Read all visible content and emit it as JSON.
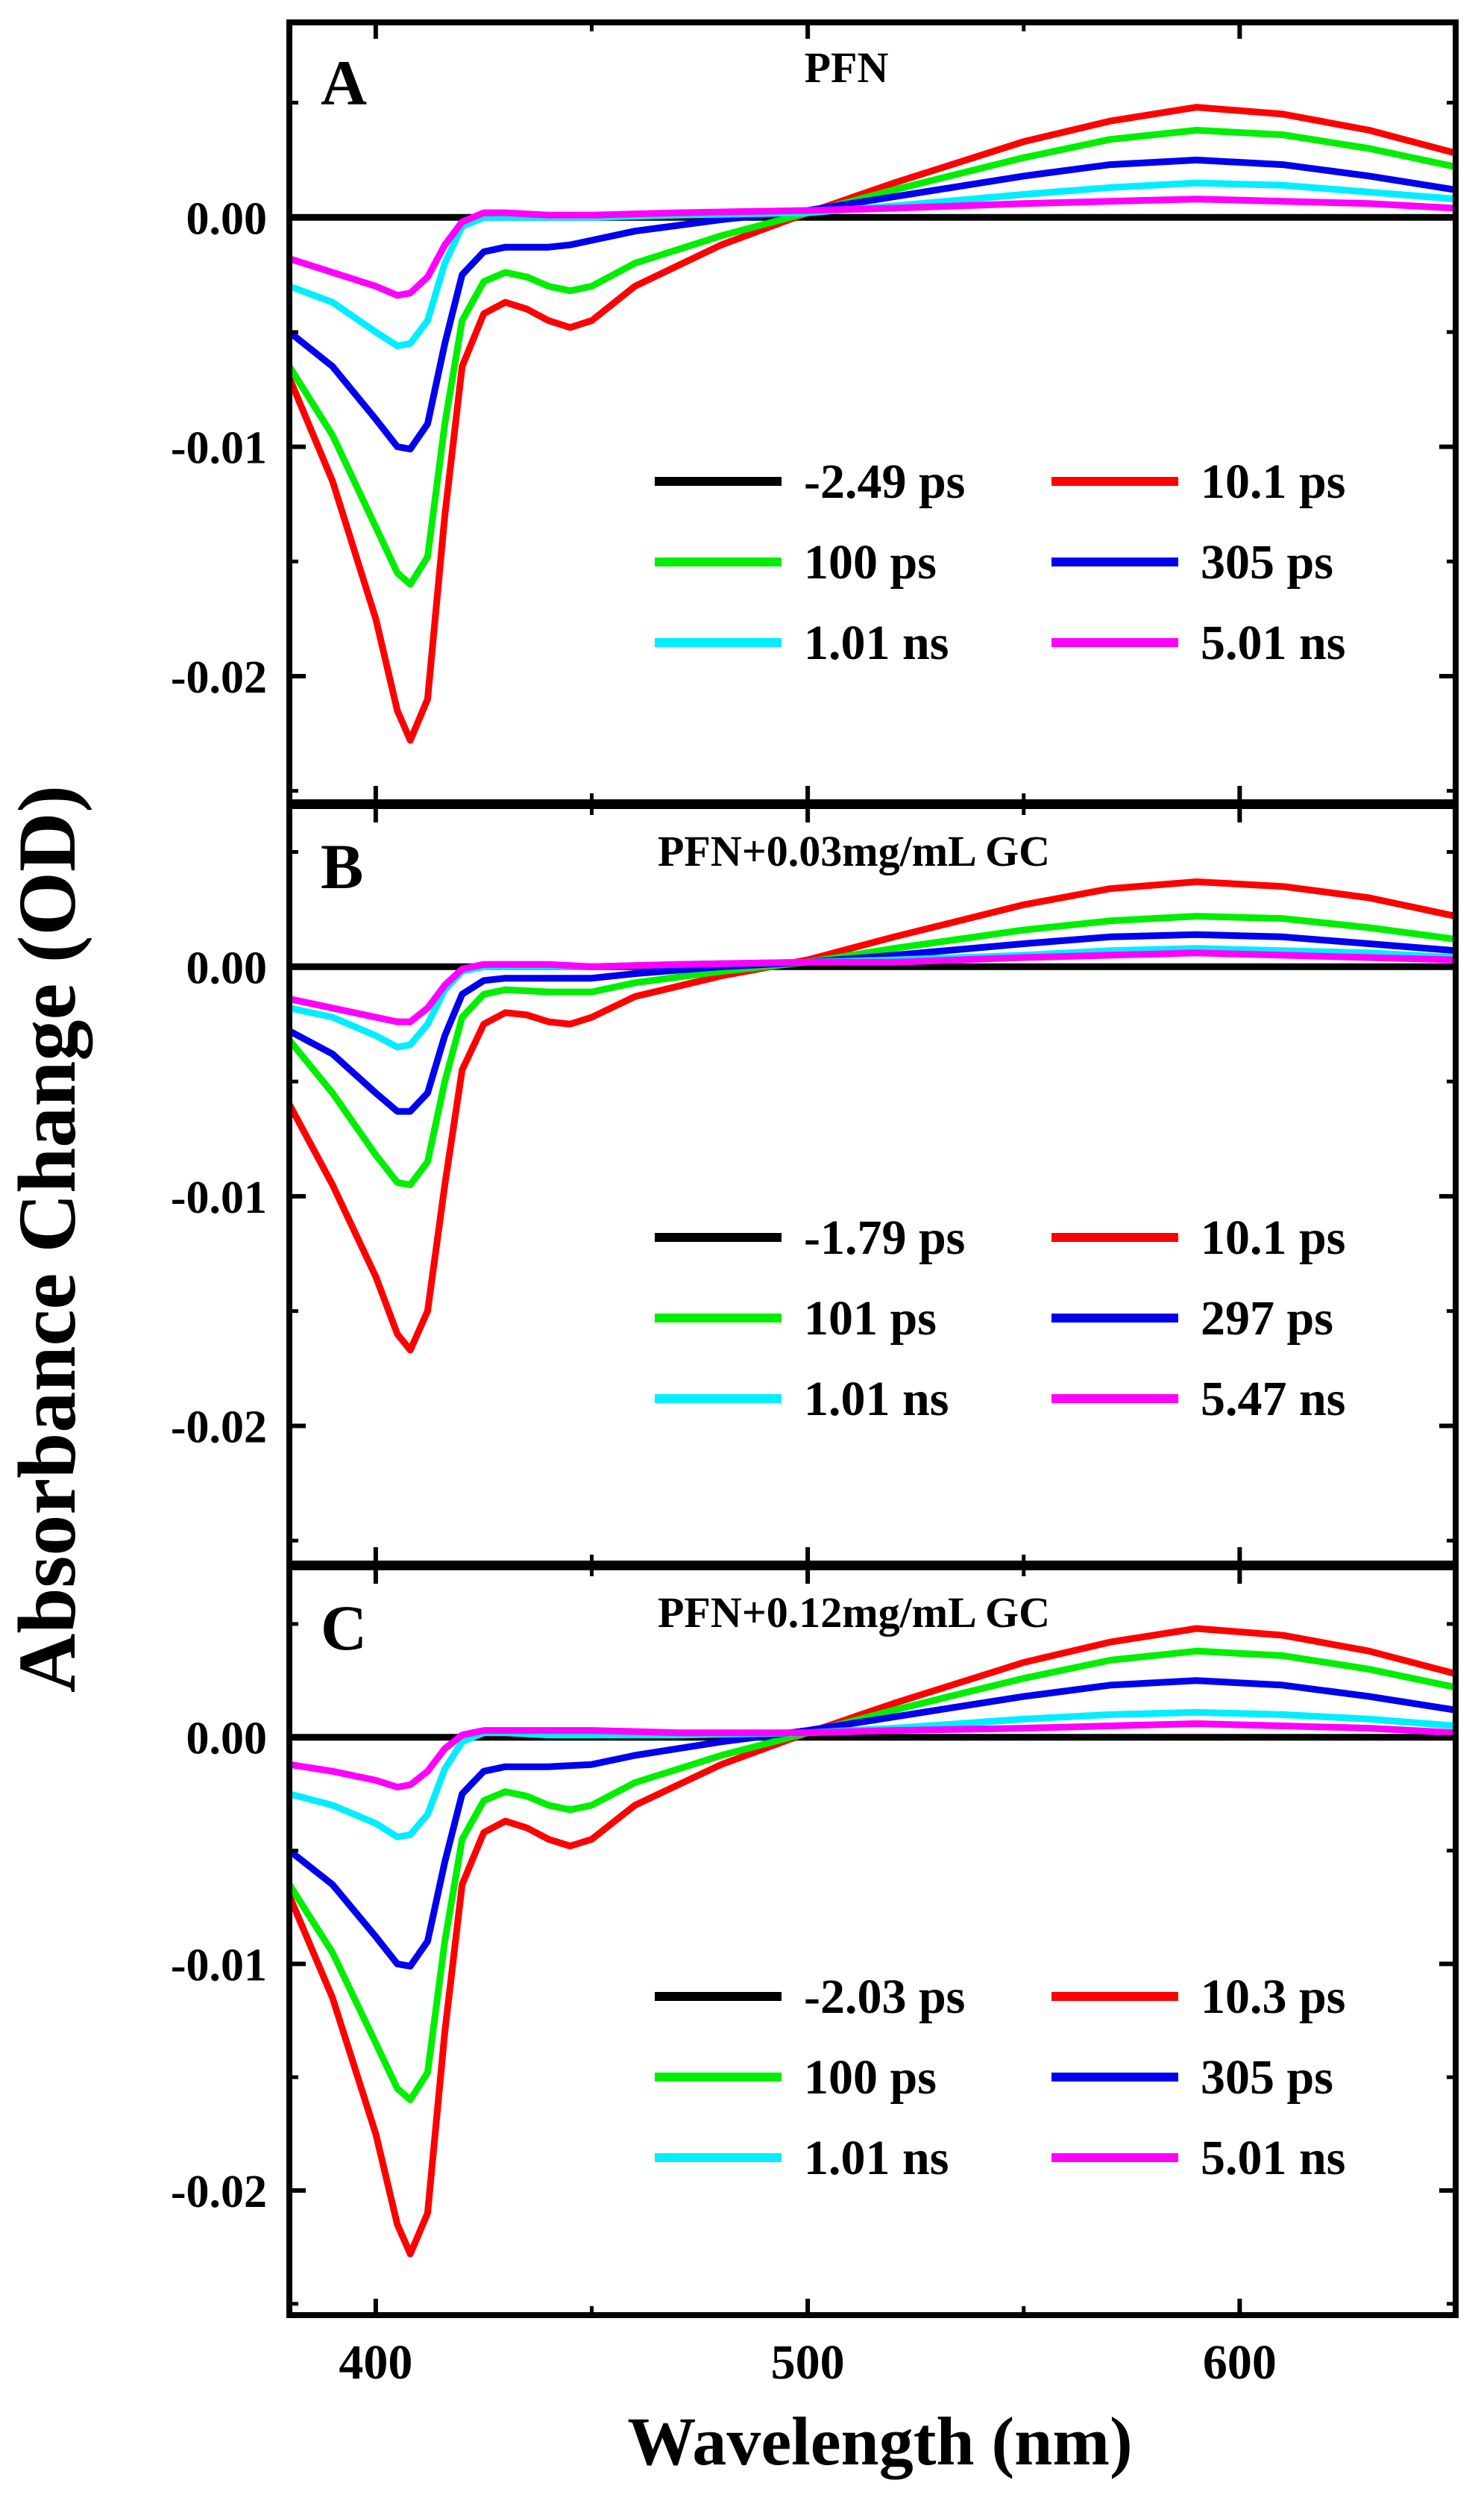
{
  "figure": {
    "y_axis_label": "Absorbance Change (OD)",
    "x_axis_label": "Wavelength (nm)",
    "x_ticks": [
      400,
      500,
      600
    ],
    "y_ticks": [
      0.0,
      -0.01,
      -0.02
    ],
    "y_tick_labels": [
      "0.00",
      "-0.01",
      "-0.02"
    ]
  },
  "series_colors": {
    "black": "#000000",
    "red": "#ff0000",
    "green": "#00ee00",
    "blue": "#0000ee",
    "cyan": "#00eeff",
    "magenta": "#ff00ff"
  },
  "chart_data": [
    {
      "type": "line",
      "panel_letter": "A",
      "title": "PFN",
      "xlabel": "Wavelength (nm)",
      "ylabel": "Absorbance Change (OD)",
      "xlim": [
        380,
        650
      ],
      "ylim": [
        -0.0255,
        0.0085
      ],
      "legend": [
        {
          "label": "-2.49 ps",
          "color": "black"
        },
        {
          "label": "10.1 ps",
          "color": "red"
        },
        {
          "label": "100 ps",
          "color": "green"
        },
        {
          "label": "305 ps",
          "color": "blue"
        },
        {
          "label": "1.01 ns",
          "color": "cyan"
        },
        {
          "label": "5.01 ns",
          "color": "magenta"
        }
      ],
      "series": [
        {
          "name": "-2.49 ps",
          "color": "black",
          "x": [
            380,
            400,
            420,
            450,
            500,
            550,
            600,
            650
          ],
          "y": [
            0,
            0,
            0,
            0,
            0,
            0,
            0,
            0
          ]
        },
        {
          "name": "10.1 ps",
          "color": "red",
          "x": [
            380,
            390,
            400,
            405,
            408,
            412,
            416,
            420,
            425,
            430,
            435,
            440,
            445,
            450,
            460,
            480,
            500,
            520,
            550,
            570,
            590,
            610,
            630,
            650
          ],
          "y": [
            -0.007,
            -0.0115,
            -0.0175,
            -0.0215,
            -0.0228,
            -0.021,
            -0.013,
            -0.0065,
            -0.0042,
            -0.0037,
            -0.004,
            -0.0045,
            -0.0048,
            -0.0045,
            -0.003,
            -0.0012,
            0.0002,
            0.0015,
            0.0033,
            0.0042,
            0.0048,
            0.0045,
            0.0038,
            0.0028
          ]
        },
        {
          "name": "100 ps",
          "color": "green",
          "x": [
            380,
            390,
            400,
            405,
            408,
            412,
            416,
            420,
            425,
            430,
            435,
            440,
            445,
            450,
            460,
            480,
            500,
            520,
            550,
            570,
            590,
            610,
            630,
            650
          ],
          "y": [
            -0.0065,
            -0.0095,
            -0.0135,
            -0.0155,
            -0.016,
            -0.0148,
            -0.009,
            -0.0045,
            -0.0028,
            -0.0024,
            -0.0026,
            -0.003,
            -0.0032,
            -0.003,
            -0.002,
            -0.0008,
            0.0002,
            0.0012,
            0.0026,
            0.0034,
            0.0038,
            0.0036,
            0.003,
            0.0022
          ]
        },
        {
          "name": "305 ps",
          "color": "blue",
          "x": [
            380,
            390,
            400,
            405,
            408,
            412,
            416,
            420,
            425,
            430,
            435,
            440,
            445,
            450,
            460,
            480,
            500,
            520,
            550,
            570,
            590,
            610,
            630,
            650
          ],
          "y": [
            -0.005,
            -0.0065,
            -0.0088,
            -0.01,
            -0.0101,
            -0.009,
            -0.0055,
            -0.0025,
            -0.0015,
            -0.0013,
            -0.0013,
            -0.0013,
            -0.0012,
            -0.001,
            -0.0006,
            -0.0001,
            0.0003,
            0.0009,
            0.0018,
            0.0023,
            0.0025,
            0.0023,
            0.0018,
            0.0012
          ]
        },
        {
          "name": "1.01 ns",
          "color": "cyan",
          "x": [
            380,
            390,
            400,
            405,
            408,
            412,
            416,
            420,
            425,
            430,
            440,
            450,
            470,
            500,
            520,
            550,
            570,
            590,
            610,
            630,
            650
          ],
          "y": [
            -0.003,
            -0.0037,
            -0.005,
            -0.0056,
            -0.0055,
            -0.0045,
            -0.002,
            -0.0004,
            0,
            0,
            0,
            0,
            0.0001,
            0.0002,
            0.0005,
            0.001,
            0.0013,
            0.0015,
            0.0014,
            0.0011,
            0.0008
          ]
        },
        {
          "name": "5.01 ns",
          "color": "magenta",
          "x": [
            380,
            390,
            400,
            405,
            408,
            412,
            416,
            420,
            425,
            430,
            440,
            450,
            470,
            500,
            520,
            550,
            570,
            590,
            610,
            630,
            650
          ],
          "y": [
            -0.0018,
            -0.0024,
            -0.003,
            -0.0034,
            -0.0033,
            -0.0026,
            -0.0012,
            -0.0002,
            0.0002,
            0.0002,
            0.0001,
            0.0001,
            0.0002,
            0.0003,
            0.0004,
            0.0006,
            0.0007,
            0.0008,
            0.0007,
            0.0006,
            0.0004
          ]
        }
      ]
    },
    {
      "type": "line",
      "panel_letter": "B",
      "title": "PFN+0.03mg/mL GC",
      "xlabel": "Wavelength (nm)",
      "ylabel": "Absorbance Change (OD)",
      "xlim": [
        380,
        650
      ],
      "ylim": [
        -0.026,
        0.007
      ],
      "legend": [
        {
          "label": "-1.79 ps",
          "color": "black"
        },
        {
          "label": "10.1 ps",
          "color": "red"
        },
        {
          "label": "101 ps",
          "color": "green"
        },
        {
          "label": "297 ps",
          "color": "blue"
        },
        {
          "label": "1.01 ns",
          "color": "cyan"
        },
        {
          "label": "5.47 ns",
          "color": "magenta"
        }
      ],
      "series": [
        {
          "name": "-1.79 ps",
          "color": "black",
          "x": [
            380,
            400,
            420,
            450,
            500,
            550,
            600,
            650
          ],
          "y": [
            0,
            0,
            0,
            0,
            0,
            0,
            0,
            0
          ]
        },
        {
          "name": "10.1 ps",
          "color": "red",
          "x": [
            380,
            390,
            400,
            405,
            408,
            412,
            416,
            420,
            425,
            430,
            435,
            440,
            445,
            450,
            460,
            480,
            500,
            520,
            550,
            570,
            590,
            610,
            630,
            650
          ],
          "y": [
            -0.006,
            -0.0095,
            -0.0135,
            -0.016,
            -0.0167,
            -0.015,
            -0.0095,
            -0.0045,
            -0.0025,
            -0.002,
            -0.0021,
            -0.0024,
            -0.0025,
            -0.0022,
            -0.0013,
            -0.0004,
            0.0003,
            0.0013,
            0.0027,
            0.0034,
            0.0037,
            0.0035,
            0.003,
            0.0022
          ]
        },
        {
          "name": "101 ps",
          "color": "green",
          "x": [
            380,
            390,
            400,
            405,
            408,
            412,
            416,
            420,
            425,
            430,
            440,
            450,
            460,
            480,
            500,
            520,
            550,
            570,
            590,
            610,
            630,
            650
          ],
          "y": [
            -0.0032,
            -0.0055,
            -0.0082,
            -0.0094,
            -0.0095,
            -0.0085,
            -0.005,
            -0.0022,
            -0.0012,
            -0.001,
            -0.0011,
            -0.0011,
            -0.0007,
            -0.0002,
            0.0002,
            0.0008,
            0.0016,
            0.002,
            0.0022,
            0.0021,
            0.0017,
            0.0012
          ]
        },
        {
          "name": "297 ps",
          "color": "blue",
          "x": [
            380,
            390,
            400,
            405,
            408,
            412,
            416,
            420,
            425,
            430,
            440,
            450,
            460,
            480,
            500,
            520,
            550,
            570,
            590,
            610,
            630,
            650
          ],
          "y": [
            -0.0028,
            -0.0038,
            -0.0055,
            -0.0063,
            -0.0063,
            -0.0055,
            -0.003,
            -0.0012,
            -0.0006,
            -0.0005,
            -0.0005,
            -0.0005,
            -0.0003,
            0,
            0.0002,
            0.0005,
            0.001,
            0.0013,
            0.0014,
            0.0013,
            0.001,
            0.0007
          ]
        },
        {
          "name": "1.01 ns",
          "color": "cyan",
          "x": [
            380,
            390,
            400,
            405,
            408,
            412,
            416,
            420,
            425,
            430,
            440,
            450,
            470,
            500,
            520,
            550,
            570,
            590,
            610,
            630,
            650
          ],
          "y": [
            -0.0018,
            -0.0022,
            -0.003,
            -0.0035,
            -0.0034,
            -0.0025,
            -0.001,
            -0.0002,
            0,
            0,
            0,
            0,
            0.0001,
            0.0002,
            0.0003,
            0.0005,
            0.0007,
            0.0008,
            0.0007,
            0.0006,
            0.0004
          ]
        },
        {
          "name": "5.47 ns",
          "color": "magenta",
          "x": [
            380,
            390,
            400,
            405,
            408,
            412,
            416,
            420,
            425,
            430,
            440,
            450,
            470,
            500,
            520,
            550,
            570,
            590,
            610,
            630,
            650
          ],
          "y": [
            -0.0014,
            -0.0018,
            -0.0022,
            -0.0024,
            -0.0024,
            -0.0018,
            -0.0008,
            -0.0001,
            0.0001,
            0.0001,
            0.0001,
            0,
            0.0001,
            0.0002,
            0.0002,
            0.0004,
            0.0005,
            0.0006,
            0.0005,
            0.0004,
            0.0003
          ]
        }
      ]
    },
    {
      "type": "line",
      "panel_letter": "C",
      "title": "PFN+0.12mg/mL GC",
      "xlabel": "Wavelength (nm)",
      "ylabel": "Absorbance Change (OD)",
      "xlim": [
        380,
        650
      ],
      "ylim": [
        -0.0255,
        0.0075
      ],
      "legend": [
        {
          "label": "-2.03 ps",
          "color": "black"
        },
        {
          "label": "10.3 ps",
          "color": "red"
        },
        {
          "label": "100 ps",
          "color": "green"
        },
        {
          "label": "305 ps",
          "color": "blue"
        },
        {
          "label": "1.01 ns",
          "color": "cyan"
        },
        {
          "label": "5.01 ns",
          "color": "magenta"
        }
      ],
      "series": [
        {
          "name": "-2.03 ps",
          "color": "black",
          "x": [
            380,
            400,
            420,
            450,
            500,
            550,
            600,
            650
          ],
          "y": [
            0,
            0,
            0,
            0,
            0,
            0,
            0,
            0
          ]
        },
        {
          "name": "10.3 ps",
          "color": "red",
          "x": [
            380,
            390,
            400,
            405,
            408,
            412,
            416,
            420,
            425,
            430,
            435,
            440,
            445,
            450,
            460,
            480,
            500,
            520,
            550,
            570,
            590,
            610,
            630,
            650
          ],
          "y": [
            -0.007,
            -0.0115,
            -0.0175,
            -0.0215,
            -0.0228,
            -0.021,
            -0.013,
            -0.0065,
            -0.0042,
            -0.0037,
            -0.004,
            -0.0045,
            -0.0048,
            -0.0045,
            -0.003,
            -0.0012,
            0.0002,
            0.0015,
            0.0033,
            0.0042,
            0.0048,
            0.0045,
            0.0038,
            0.0028
          ]
        },
        {
          "name": "100 ps",
          "color": "green",
          "x": [
            380,
            390,
            400,
            405,
            408,
            412,
            416,
            420,
            425,
            430,
            435,
            440,
            445,
            450,
            460,
            480,
            500,
            520,
            550,
            570,
            590,
            610,
            630,
            650
          ],
          "y": [
            -0.0065,
            -0.0095,
            -0.0135,
            -0.0155,
            -0.016,
            -0.0148,
            -0.009,
            -0.0045,
            -0.0028,
            -0.0024,
            -0.0026,
            -0.003,
            -0.0032,
            -0.003,
            -0.002,
            -0.0008,
            0.0002,
            0.0012,
            0.0026,
            0.0034,
            0.0038,
            0.0036,
            0.003,
            0.0022
          ]
        },
        {
          "name": "305 ps",
          "color": "blue",
          "x": [
            380,
            390,
            400,
            405,
            408,
            412,
            416,
            420,
            425,
            430,
            440,
            450,
            460,
            480,
            500,
            520,
            550,
            570,
            590,
            610,
            630,
            650
          ],
          "y": [
            -0.005,
            -0.0065,
            -0.0088,
            -0.01,
            -0.0101,
            -0.009,
            -0.0055,
            -0.0025,
            -0.0015,
            -0.0013,
            -0.0013,
            -0.0012,
            -0.0008,
            -0.0002,
            0.0003,
            0.0009,
            0.0018,
            0.0023,
            0.0025,
            0.0023,
            0.0018,
            0.0012
          ]
        },
        {
          "name": "1.01 ns",
          "color": "cyan",
          "x": [
            380,
            390,
            400,
            405,
            408,
            412,
            416,
            420,
            425,
            430,
            440,
            450,
            470,
            500,
            520,
            550,
            570,
            590,
            610,
            630,
            650
          ],
          "y": [
            -0.0025,
            -0.003,
            -0.0038,
            -0.0044,
            -0.0043,
            -0.0034,
            -0.0014,
            -0.0002,
            0.0002,
            0.0002,
            0.0001,
            0.0001,
            0.0001,
            0.0002,
            0.0004,
            0.0008,
            0.001,
            0.0011,
            0.001,
            0.0008,
            0.0005
          ]
        },
        {
          "name": "5.01 ns",
          "color": "magenta",
          "x": [
            380,
            390,
            400,
            405,
            408,
            412,
            416,
            420,
            425,
            430,
            440,
            450,
            470,
            500,
            520,
            550,
            570,
            590,
            610,
            630,
            650
          ],
          "y": [
            -0.0012,
            -0.0015,
            -0.0019,
            -0.0022,
            -0.0021,
            -0.0015,
            -0.0005,
            0.0001,
            0.0003,
            0.0003,
            0.0003,
            0.0003,
            0.0002,
            0.0002,
            0.0003,
            0.0004,
            0.0005,
            0.0006,
            0.0005,
            0.0004,
            0.0002
          ]
        }
      ]
    }
  ]
}
